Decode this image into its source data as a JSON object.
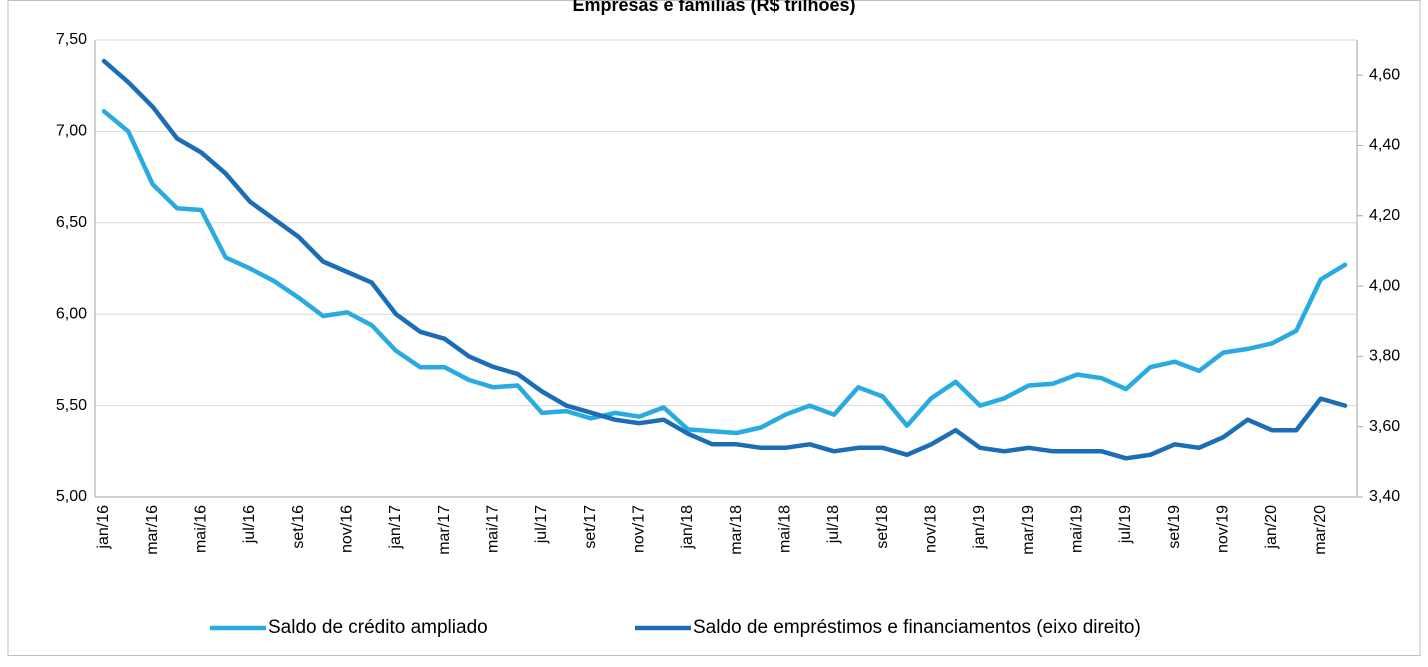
{
  "chart_data": {
    "type": "line",
    "title": "Empresas e famílias (R$ trilhões)",
    "categories": [
      "jan/16",
      null,
      "mar/16",
      null,
      "mai/16",
      null,
      "jul/16",
      null,
      "set/16",
      null,
      "nov/16",
      null,
      "jan/17",
      null,
      "mar/17",
      null,
      "mai/17",
      null,
      "jul/17",
      null,
      "set/17",
      null,
      "nov/17",
      null,
      "jan/18",
      null,
      "mar/18",
      null,
      "mai/18",
      null,
      "jul/18",
      null,
      "set/18",
      null,
      "nov/18",
      null,
      "jan/19",
      null,
      "mar/19",
      null,
      "mai/19",
      null,
      "jul/19",
      null,
      "set/19",
      null,
      "nov/19",
      null,
      "jan/20",
      null,
      "mar/20",
      null
    ],
    "series": [
      {
        "name": "Saldo de crédito ampliado",
        "color": "#29abe2",
        "axis": "y",
        "values": [
          7.11,
          7.0,
          6.71,
          6.58,
          6.57,
          6.31,
          6.25,
          6.18,
          6.09,
          5.99,
          6.01,
          5.94,
          5.8,
          5.71,
          5.71,
          5.64,
          5.6,
          5.61,
          5.46,
          5.47,
          5.43,
          5.46,
          5.44,
          5.49,
          5.37,
          5.36,
          5.35,
          5.38,
          5.45,
          5.5,
          5.45,
          5.6,
          5.55,
          5.39,
          5.54,
          5.63,
          5.5,
          5.54,
          5.61,
          5.62,
          5.67,
          5.65,
          5.59,
          5.71,
          5.74,
          5.69,
          5.79,
          5.81,
          5.84,
          5.91,
          6.19,
          6.27
        ]
      },
      {
        "name": "Saldo de empréstimos e financiamentos (eixo direito)",
        "color": "#1b6db5",
        "axis": "y2",
        "values": [
          4.64,
          4.58,
          4.51,
          4.42,
          4.38,
          4.32,
          4.24,
          4.19,
          4.14,
          4.07,
          4.04,
          4.01,
          3.92,
          3.87,
          3.85,
          3.8,
          3.77,
          3.75,
          3.7,
          3.66,
          3.64,
          3.62,
          3.61,
          3.62,
          3.58,
          3.55,
          3.55,
          3.54,
          3.54,
          3.55,
          3.53,
          3.54,
          3.54,
          3.52,
          3.55,
          3.59,
          3.54,
          3.53,
          3.54,
          3.53,
          3.53,
          3.53,
          3.51,
          3.52,
          3.55,
          3.54,
          3.57,
          3.62,
          3.59,
          3.59,
          3.68,
          3.66
        ]
      }
    ],
    "ylim": [
      5.0,
      7.5
    ],
    "yticks": [
      {
        "value": 5.0,
        "label": "5,00"
      },
      {
        "value": 5.5,
        "label": "5,50"
      },
      {
        "value": 6.0,
        "label": "6,00"
      },
      {
        "value": 6.5,
        "label": "6,50"
      },
      {
        "value": 7.0,
        "label": "7,00"
      },
      {
        "value": 7.5,
        "label": "7,50"
      }
    ],
    "y2lim": [
      3.4,
      4.7
    ],
    "y2ticks": [
      {
        "value": 3.4,
        "label": "3,40"
      },
      {
        "value": 3.6,
        "label": "3,60"
      },
      {
        "value": 3.8,
        "label": "3,80"
      },
      {
        "value": 4.0,
        "label": "4,00"
      },
      {
        "value": 4.2,
        "label": "4,20"
      },
      {
        "value": 4.4,
        "label": "4,40"
      },
      {
        "value": 4.6,
        "label": "4,60"
      }
    ],
    "grid": true,
    "legend": "bottom"
  }
}
